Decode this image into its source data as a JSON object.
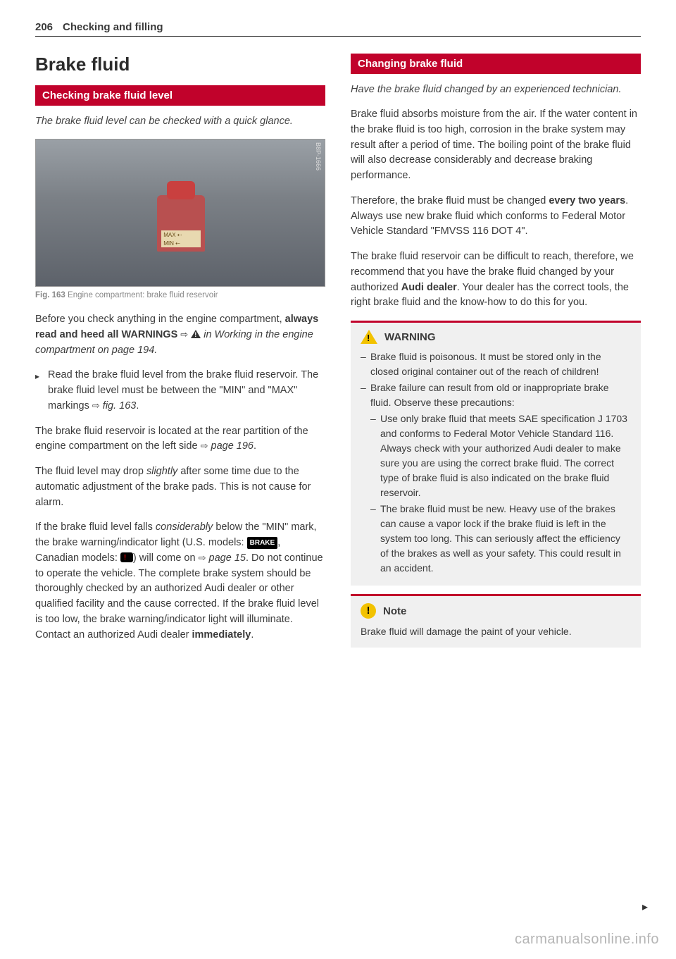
{
  "page_number": "206",
  "chapter_title": "Checking and filling",
  "left": {
    "section_title": "Brake fluid",
    "subhead": "Checking brake fluid level",
    "intro": "The brake fluid level can be checked with a quick glance.",
    "figure": {
      "code": "B8P-1666",
      "res_max": "MAX",
      "res_min": "MIN",
      "caption_label": "Fig. 163",
      "caption_text": "Engine compartment: brake fluid reservoir"
    },
    "p1a": "Before you check anything in the engine compartment, ",
    "p1b": "always read and heed all WARNINGS",
    "p1c": " ",
    "p1d": " in Working in the engine compartment on page 194.",
    "bullet1a": "Read the brake fluid level from the brake fluid reservoir. The brake fluid level must be between the \"MIN\" and \"MAX\" markings ",
    "bullet1b": "fig. 163",
    "bullet1c": ".",
    "p2a": "The brake fluid reservoir is located at the rear partition of the engine compartment on the left side ",
    "p2b": "page 196",
    "p2c": ".",
    "p3a": "The fluid level may drop ",
    "p3b": "slightly",
    "p3c": " after some time due to the automatic adjustment of the brake pads. This is not cause for alarm.",
    "p4a": "If the brake fluid level falls ",
    "p4b": "considerably",
    "p4c": " below the \"MIN\" mark, the brake warning/indicator light (U.S. models: ",
    "p4d": ", Canadian models: ",
    "p4e": ") will come on ",
    "p4f": "page 15",
    "p4g": ". Do not continue to operate the vehicle. The complete brake system should be thoroughly checked by an authorized Audi dealer or other qualified facility and the cause corrected. If the brake fluid level is too low, the brake warning/indicator light will illuminate. Contact an authorized Audi dealer ",
    "p4h": "immediately",
    "p4i": ".",
    "brake_label": "BRAKE"
  },
  "right": {
    "subhead": "Changing brake fluid",
    "intro": "Have the brake fluid changed by an experienced technician.",
    "p1": "Brake fluid absorbs moisture from the air. If the water content in the brake fluid is too high, corrosion in the brake system may result after a period of time. The boiling point of the brake fluid will also decrease considerably and decrease braking performance.",
    "p2a": "Therefore, the brake fluid must be changed ",
    "p2b": "every two years",
    "p2c": ". Always use new brake fluid which conforms to Federal Motor Vehicle Standard \"FMVSS 116 DOT 4\".",
    "p3a": "The brake fluid reservoir can be difficult to reach, therefore, we recommend that you have the brake fluid changed by your authorized ",
    "p3b": "Audi dealer",
    "p3c": ". Your dealer has the correct tools, the right brake fluid and the know-how to do this for you.",
    "warning": {
      "title": "WARNING",
      "i1": "Brake fluid is poisonous. It must be stored only in the closed original container out of the reach of children!",
      "i2": "Brake failure can result from old or inappropriate brake fluid. Observe these precautions:",
      "i2a": "Use only brake fluid that meets SAE specification J 1703 and conforms to Federal Motor Vehicle Standard 116. Always check with your authorized Audi dealer to make sure you are using the correct brake fluid. The correct type of brake fluid is also indicated on the brake fluid reservoir.",
      "i2b": "The brake fluid must be new. Heavy use of the brakes can cause a vapor lock if the brake fluid is left in the system too long. This can seriously affect the efficiency of the brakes as well as your safety. This could result in an accident."
    },
    "note": {
      "title": "Note",
      "text": "Brake fluid will damage the paint of your vehicle."
    }
  },
  "watermark": "carmanualsonline.info"
}
